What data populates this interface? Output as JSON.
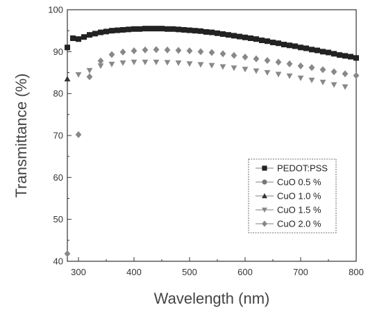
{
  "chart_data": {
    "type": "scatter",
    "xlabel": "Wavelength (nm)",
    "ylabel": "Transmittance (%)",
    "xlim": [
      280,
      800
    ],
    "ylim": [
      40,
      100
    ],
    "x_ticks": [
      300,
      400,
      500,
      600,
      700,
      800
    ],
    "y_ticks": [
      40,
      50,
      60,
      70,
      80,
      90,
      100
    ],
    "grid": false,
    "legend_position": "lower-right",
    "series": [
      {
        "name": "PEDOT:PSS",
        "marker": "square",
        "color": "#222222",
        "x": [
          280,
          290,
          300,
          310,
          320,
          330,
          340,
          350,
          360,
          370,
          380,
          390,
          400,
          410,
          420,
          430,
          440,
          450,
          460,
          470,
          480,
          490,
          500,
          510,
          520,
          530,
          540,
          550,
          560,
          570,
          580,
          590,
          600,
          610,
          620,
          630,
          640,
          650,
          660,
          670,
          680,
          690,
          700,
          710,
          720,
          730,
          740,
          750,
          760,
          770,
          780,
          790,
          800
        ],
        "y": [
          91.0,
          93.2,
          93.0,
          93.5,
          94.0,
          94.3,
          94.6,
          94.8,
          95.0,
          95.1,
          95.2,
          95.3,
          95.4,
          95.4,
          95.5,
          95.5,
          95.5,
          95.5,
          95.4,
          95.4,
          95.3,
          95.2,
          95.1,
          95.0,
          94.9,
          94.7,
          94.6,
          94.4,
          94.2,
          94.0,
          93.8,
          93.6,
          93.4,
          93.2,
          93.0,
          92.7,
          92.5,
          92.2,
          92.0,
          91.7,
          91.5,
          91.3,
          91.0,
          90.8,
          90.5,
          90.3,
          90.0,
          89.8,
          89.5,
          89.2,
          89.0,
          88.8,
          88.5
        ]
      },
      {
        "name": "CuO 0.5 %",
        "marker": "circle",
        "color": "#777777",
        "x": [],
        "y": []
      },
      {
        "name": "CuO 1.0 %",
        "marker": "triangle-up",
        "color": "#333333",
        "x": [
          280
        ],
        "y": [
          83.5
        ]
      },
      {
        "name": "CuO 1.5 %",
        "marker": "triangle-down",
        "color": "#888888",
        "x": [
          300,
          320,
          340,
          360,
          380,
          400,
          420,
          440,
          460,
          480,
          500,
          520,
          540,
          560,
          580,
          600,
          620,
          640,
          660,
          680,
          700,
          720,
          740,
          760,
          780
        ],
        "y": [
          84.5,
          85.5,
          86.6,
          87.0,
          87.3,
          87.5,
          87.5,
          87.5,
          87.4,
          87.3,
          87.1,
          86.9,
          86.7,
          86.4,
          86.1,
          85.8,
          85.4,
          85.0,
          84.6,
          84.2,
          83.7,
          83.2,
          82.7,
          82.1,
          81.6
        ]
      },
      {
        "name": "CuO 2.0 %",
        "marker": "diamond",
        "color": "#888888",
        "x": [
          280,
          300,
          320,
          340,
          360,
          380,
          400,
          420,
          440,
          460,
          480,
          500,
          520,
          540,
          560,
          580,
          600,
          620,
          640,
          660,
          680,
          700,
          720,
          740,
          760,
          780,
          800
        ],
        "y": [
          41.8,
          70.2,
          84.0,
          87.8,
          89.3,
          89.9,
          90.2,
          90.4,
          90.5,
          90.4,
          90.3,
          90.2,
          90.0,
          89.8,
          89.5,
          89.1,
          88.7,
          88.3,
          87.9,
          87.5,
          87.1,
          86.6,
          86.2,
          85.7,
          85.2,
          84.7,
          84.3
        ]
      }
    ]
  }
}
